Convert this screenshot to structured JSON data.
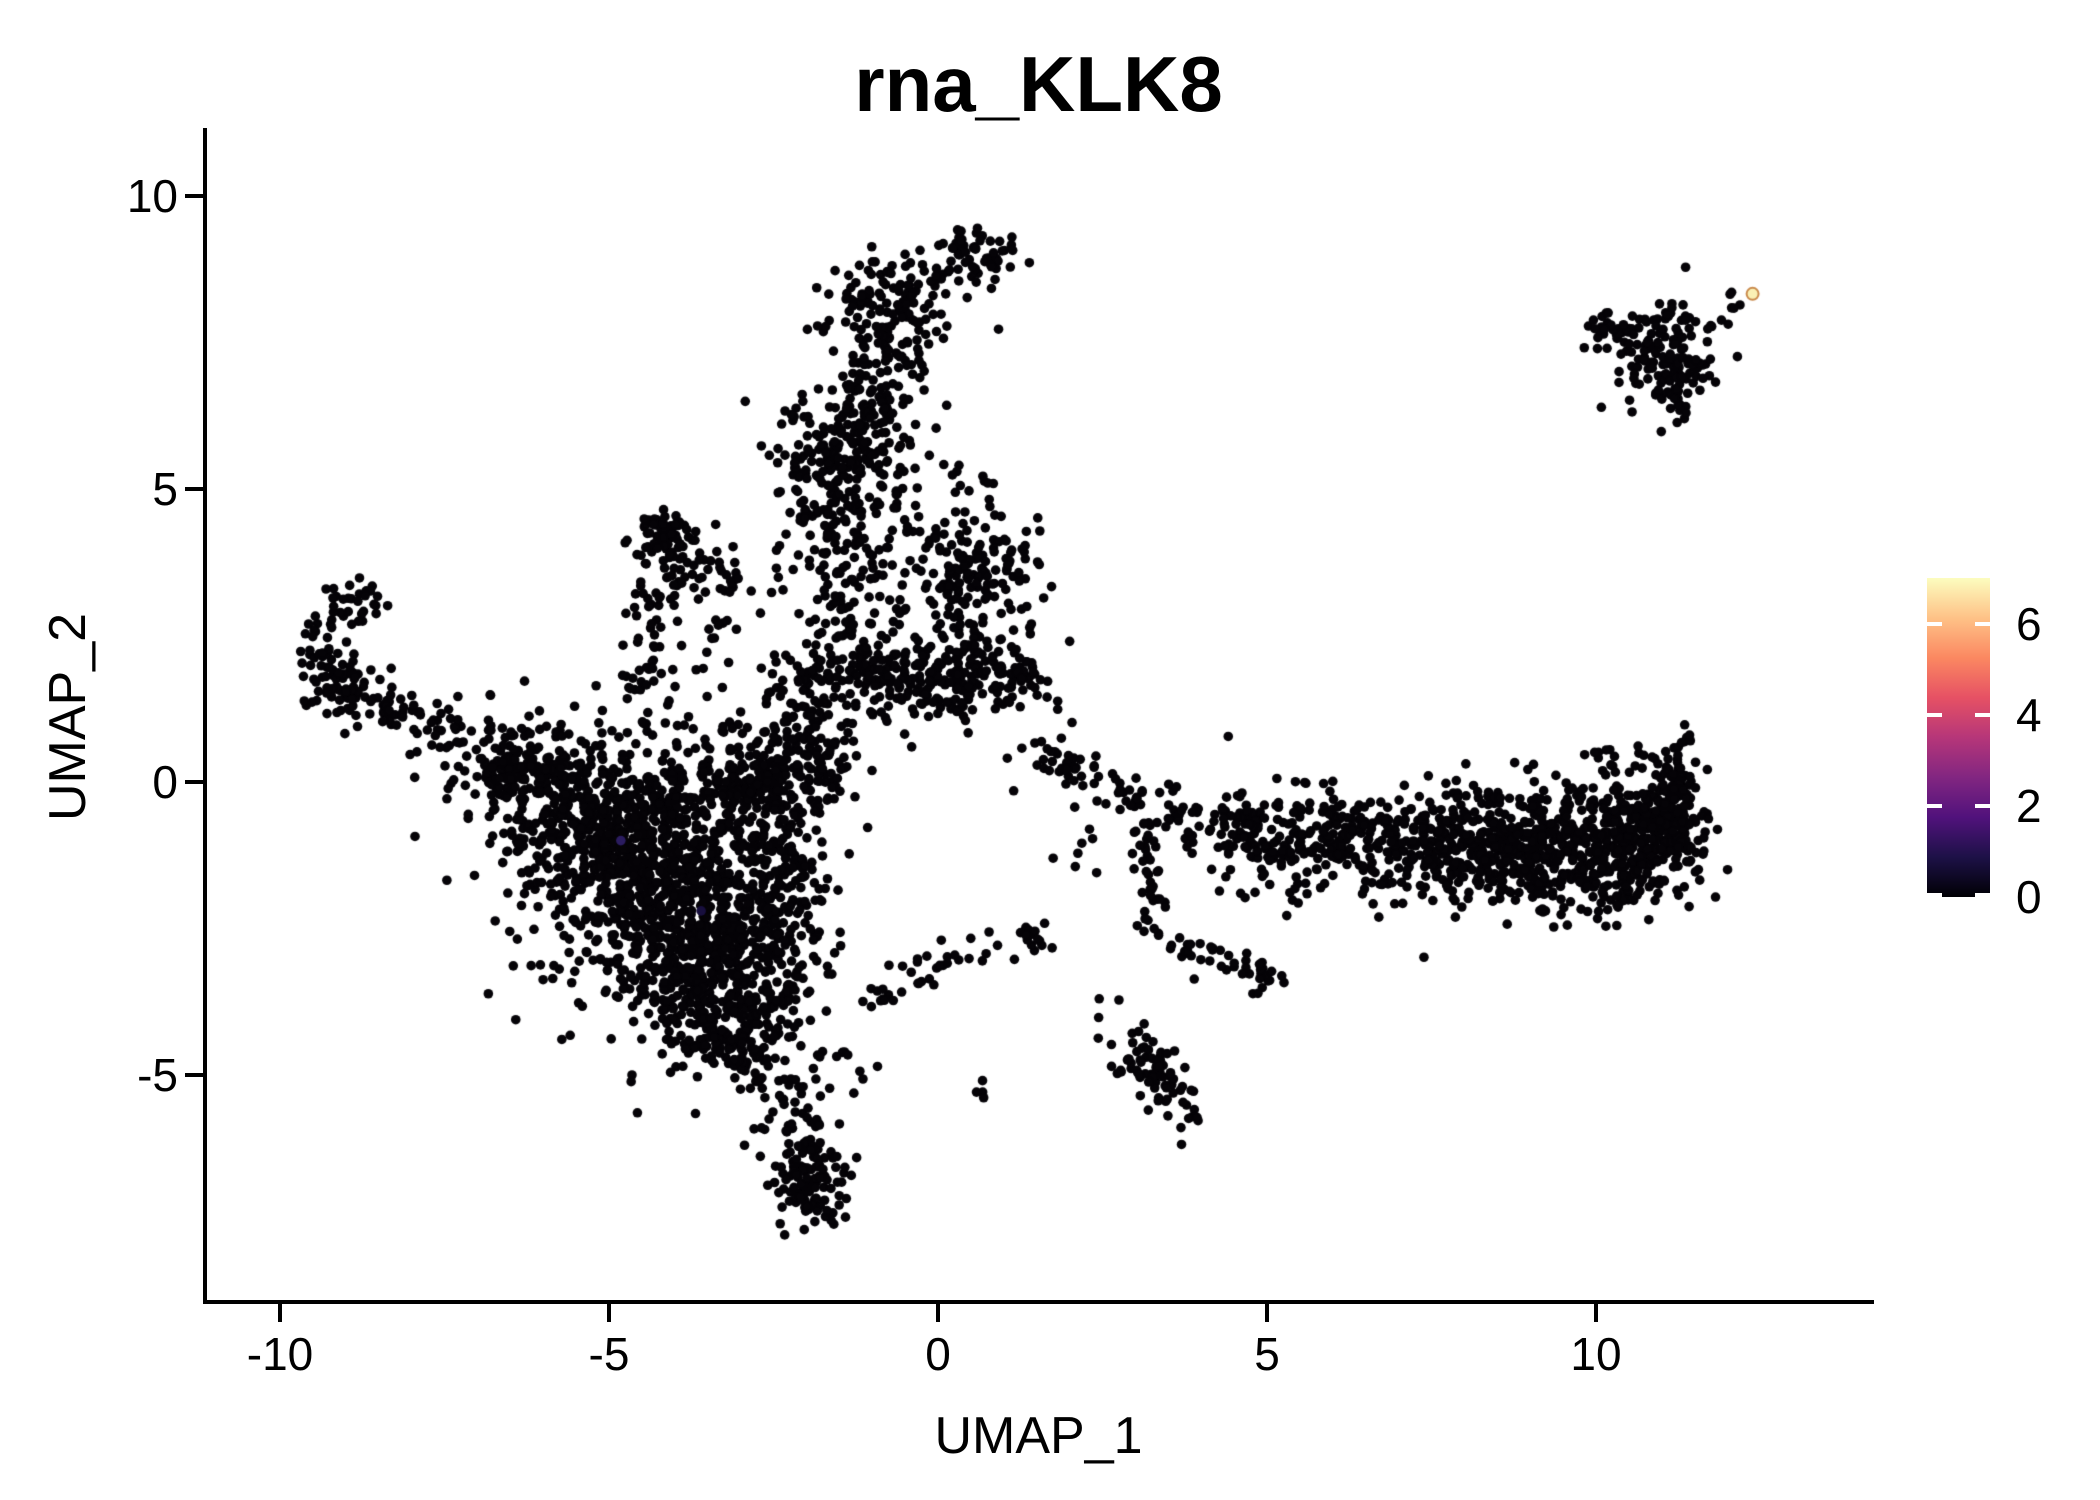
{
  "title": "rna_KLK8",
  "axes": {
    "x": {
      "label": "UMAP_1",
      "ticks": [
        -10,
        -5,
        0,
        5,
        10
      ]
    },
    "y": {
      "label": "UMAP_2",
      "ticks": [
        -5,
        0,
        5,
        10
      ]
    }
  },
  "colorbar": {
    "min": 0,
    "max": 7,
    "ticks": [
      0,
      2,
      4,
      6
    ],
    "tick_color": "#ffffff",
    "gradient": [
      "#000004",
      "#1D1147",
      "#51127C",
      "#822681",
      "#B63679",
      "#E65164",
      "#FB8861",
      "#FEC287",
      "#FCFDBF"
    ]
  },
  "chart_data": {
    "type": "scatter",
    "title": "rna_KLK8",
    "xlabel": "UMAP_1",
    "ylabel": "UMAP_2",
    "xlim": [
      -11.1,
      14.2
    ],
    "ylim": [
      -8.9,
      11.1
    ],
    "x_ticks": [
      -10,
      -5,
      0,
      5,
      10
    ],
    "y_ticks": [
      -5,
      0,
      5,
      10
    ],
    "legend_position": "right",
    "grid": false,
    "point_color": "#050307",
    "point_radius_px": 4.8,
    "color_scale": {
      "name": "magma",
      "domain": [
        0,
        7
      ],
      "ticks": [
        0,
        2,
        4,
        6
      ]
    },
    "seed": 1337,
    "gauss_clusters": [
      [
        0.62,
        9.02,
        0.33,
        0.25,
        55
      ],
      [
        -0.68,
        8.1,
        0.5,
        0.42,
        130
      ],
      [
        -1.5,
        5.1,
        0.5,
        0.72,
        220
      ],
      [
        -1.05,
        6.05,
        0.35,
        0.5,
        80
      ],
      [
        0.45,
        5.05,
        0.3,
        0.35,
        12
      ],
      [
        0.5,
        3.6,
        0.55,
        0.5,
        150
      ],
      [
        0.1,
        1.72,
        0.8,
        0.33,
        220
      ],
      [
        -1.35,
        1.8,
        0.45,
        0.3,
        60
      ],
      [
        -4.15,
        4.2,
        0.27,
        0.22,
        55
      ],
      [
        -3.55,
        2.9,
        0.5,
        0.5,
        28
      ],
      [
        -2.55,
        1.35,
        0.55,
        0.45,
        35
      ],
      [
        -9.0,
        1.62,
        0.3,
        0.24,
        70
      ],
      [
        -6.35,
        0.05,
        0.32,
        0.26,
        60
      ],
      [
        -5.3,
        -0.55,
        0.95,
        0.7,
        480,
        -35
      ],
      [
        -4.3,
        -1.8,
        0.9,
        1.0,
        680
      ],
      [
        -3.35,
        -3.0,
        0.7,
        0.9,
        430
      ],
      [
        -2.95,
        -0.05,
        0.8,
        0.42,
        240
      ],
      [
        -2.45,
        -1.6,
        0.45,
        0.9,
        170
      ],
      [
        -3.05,
        -4.25,
        0.45,
        0.5,
        130
      ],
      [
        -1.95,
        -6.85,
        0.27,
        0.4,
        70
      ],
      [
        0.68,
        -5.27,
        0.1,
        0.09,
        4
      ],
      [
        5.1,
        -1.05,
        0.45,
        0.5,
        90
      ],
      [
        6.3,
        -0.95,
        0.65,
        0.4,
        130
      ],
      [
        7.5,
        -1.1,
        0.6,
        0.45,
        170
      ],
      [
        8.6,
        -1.2,
        0.6,
        0.5,
        220
      ],
      [
        9.7,
        -1.15,
        0.6,
        0.5,
        250
      ],
      [
        10.7,
        -0.9,
        0.45,
        0.55,
        250
      ],
      [
        11.25,
        -0.5,
        0.2,
        0.55,
        90
      ],
      [
        8.5,
        -0.3,
        1.4,
        0.22,
        40
      ],
      [
        10.1,
        0.55,
        0.12,
        0.18,
        6
      ],
      [
        11.0,
        7.3,
        0.42,
        0.42,
        115
      ],
      [
        5.0,
        -3.32,
        0.14,
        0.12,
        14
      ],
      [
        2.2,
        -1.1,
        0.3,
        0.35,
        8
      ],
      [
        0.3,
        2.6,
        0.45,
        0.4,
        30
      ],
      [
        -1.9,
        0.62,
        0.4,
        0.38,
        30
      ],
      [
        3.35,
        -5.0,
        0.5,
        0.2,
        85,
        -55
      ]
    ],
    "path_clusters": [
      {
        "p": [
          [
            -0.8,
            7.5
          ],
          [
            -1.05,
            6.6
          ]
        ],
        "w": 0.4,
        "n": 55
      },
      {
        "p": [
          [
            -1.35,
            4.0
          ],
          [
            -1.25,
            2.3
          ]
        ],
        "w": 0.5,
        "n": 100
      },
      {
        "p": [
          [
            -4.0,
            3.95
          ],
          [
            -3.0,
            3.35
          ]
        ],
        "w": 0.22,
        "n": 40
      },
      {
        "p": [
          [
            -4.2,
            3.8
          ],
          [
            -4.5,
            2.4
          ],
          [
            -4.55,
            1.05
          ]
        ],
        "w": 0.2,
        "n": 55
      },
      {
        "p": [
          [
            -8.45,
            3.2
          ],
          [
            -9.05,
            2.95
          ],
          [
            -9.4,
            2.35
          ],
          [
            -9.25,
            1.8
          ]
        ],
        "w": 0.17,
        "n": 60
      },
      {
        "p": [
          [
            -8.65,
            1.35
          ],
          [
            -7.7,
            1.0
          ],
          [
            -6.8,
            0.5
          ],
          [
            -6.2,
            0.15
          ]
        ],
        "w": 0.28,
        "n": 100
      },
      {
        "p": [
          [
            -2.5,
            0.35
          ],
          [
            -1.7,
            1.15
          ]
        ],
        "w": 0.3,
        "n": 45
      },
      {
        "p": [
          [
            -2.75,
            -4.55
          ],
          [
            -2.3,
            -5.5
          ],
          [
            -2.0,
            -6.3
          ],
          [
            -1.82,
            -7.1
          ]
        ],
        "w": 0.28,
        "n": 100
      },
      {
        "p": [
          [
            -1.5,
            -4.6
          ],
          [
            -1.05,
            -5.15
          ]
        ],
        "w": 0.13,
        "n": 10
      },
      {
        "p": [
          [
            -1.1,
            -3.85
          ],
          [
            -0.45,
            -3.4
          ],
          [
            0.25,
            -2.85
          ],
          [
            0.95,
            -2.6
          ],
          [
            1.65,
            -2.7
          ]
        ],
        "w": 0.16,
        "n": 52
      },
      {
        "p": [
          [
            1.55,
            0.5
          ],
          [
            2.3,
            0.15
          ],
          [
            3.1,
            -0.3
          ],
          [
            3.7,
            -0.55
          ]
        ],
        "w": 0.22,
        "n": 75
      },
      {
        "p": [
          [
            3.8,
            -0.6
          ],
          [
            4.5,
            -0.72
          ],
          [
            5.0,
            -0.8
          ]
        ],
        "w": 0.3,
        "n": 55
      },
      {
        "p": [
          [
            11.18,
            -0.15
          ],
          [
            11.3,
            0.85
          ]
        ],
        "w": 0.1,
        "n": 22
      },
      {
        "p": [
          [
            3.12,
            -0.85
          ],
          [
            3.2,
            -1.75
          ],
          [
            3.32,
            -2.6
          ]
        ],
        "w": 0.12,
        "n": 38
      },
      {
        "p": [
          [
            3.5,
            -2.72
          ],
          [
            4.2,
            -3.0
          ],
          [
            4.95,
            -3.28
          ]
        ],
        "w": 0.12,
        "n": 30
      },
      {
        "p": [
          [
            9.85,
            7.8
          ],
          [
            10.45,
            7.72
          ],
          [
            10.85,
            7.55
          ]
        ],
        "w": 0.13,
        "n": 28
      },
      {
        "p": [
          [
            11.15,
            6.95
          ],
          [
            11.33,
            6.4
          ]
        ],
        "w": 0.11,
        "n": 22
      },
      {
        "p": [
          [
            11.1,
            7.95
          ],
          [
            11.45,
            7.85
          ]
        ],
        "w": 0.1,
        "n": 10
      },
      {
        "p": [
          [
            11.95,
            8.0
          ],
          [
            12.18,
            8.18
          ]
        ],
        "w": 0.07,
        "n": 6
      },
      {
        "p": [
          [
            -0.2,
            8.5
          ],
          [
            0.15,
            8.75
          ]
        ],
        "w": 0.12,
        "n": 8
      },
      {
        "p": [
          [
            11.5,
            7.35
          ],
          [
            11.55,
            6.9
          ]
        ],
        "w": 0.1,
        "n": 10
      },
      {
        "p": [
          [
            0.9,
            2.1
          ],
          [
            1.35,
            1.9
          ]
        ],
        "w": 0.2,
        "n": 15
      }
    ],
    "noise_points": [
      [
        -6.8,
        1.48
      ],
      [
        -5.95,
        0.95
      ],
      [
        2.45,
        -3.7
      ],
      [
        2.75,
        -3.72
      ],
      [
        0.05,
        -2.7
      ],
      [
        9.05,
        0.3
      ],
      [
        1.15,
        -0.15
      ],
      [
        1.75,
        -1.3
      ],
      [
        -0.4,
        0.6
      ],
      [
        -2.05,
        -5.2
      ],
      [
        0.35,
        9.4
      ],
      [
        0.6,
        9.45
      ]
    ],
    "highlight_points": [
      {
        "x": 12.38,
        "y": 8.33,
        "value": 6.9,
        "color": "#FAF0B4",
        "ring": "#C98A4B",
        "r": 6
      },
      {
        "x": -4.82,
        "y": -1.0,
        "value": 1.5,
        "color": "#2B1C60",
        "r": 4.8
      },
      {
        "x": -3.6,
        "y": -2.2,
        "value": 0.8,
        "color": "#180F3E",
        "r": 4.8
      }
    ]
  }
}
